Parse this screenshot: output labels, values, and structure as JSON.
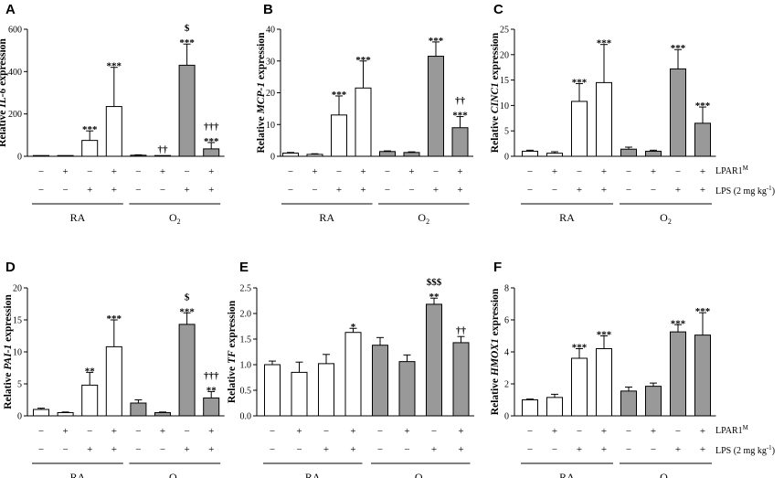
{
  "figure": {
    "group_labels": [
      "RA",
      "O2"
    ],
    "legend": [
      "LPAR1M",
      "LPS (2 mg kg-1)"
    ],
    "lpar1_signs": [
      "−",
      "+",
      "−",
      "+",
      "−",
      "+",
      "−",
      "+"
    ],
    "lps_signs": [
      "−",
      "−",
      "+",
      "+",
      "−",
      "−",
      "+",
      "+"
    ],
    "bar_colors": [
      "#ffffff",
      "#ffffff",
      "#ffffff",
      "#ffffff",
      "#999999",
      "#999999",
      "#999999",
      "#999999"
    ]
  },
  "chart_data": [
    {
      "type": "bar",
      "panel": "A",
      "title": "",
      "xlabel": "",
      "ylabel": "Relative IL-6 expression",
      "ylabel_pre": "Relative ",
      "ylabel_gene": "IL-6",
      "ylabel_post": " expression",
      "ylim": [
        0,
        600
      ],
      "yticks": [
        "0",
        "200",
        "400",
        "600"
      ],
      "categories": [
        "RA LPAR1M− LPS−",
        "RA LPAR1M+ LPS−",
        "RA LPAR1M− LPS+",
        "RA LPAR1M+ LPS+",
        "O2 LPAR1M− LPS−",
        "O2 LPAR1M+ LPS−",
        "O2 LPAR1M− LPS+",
        "O2 LPAR1M+ LPS+"
      ],
      "values": [
        2,
        0,
        75,
        235,
        5,
        0,
        430,
        35
      ],
      "errors": [
        0,
        0,
        45,
        185,
        2,
        0,
        100,
        30
      ],
      "annotations": [
        "",
        "",
        "***",
        "***",
        "",
        "††",
        "$|***",
        "†††|***"
      ]
    },
    {
      "type": "bar",
      "panel": "B",
      "title": "",
      "xlabel": "",
      "ylabel": "Relative MCP-1 expression",
      "ylabel_pre": "Relative ",
      "ylabel_gene": "MCP-1",
      "ylabel_post": " expression",
      "ylim": [
        0,
        40
      ],
      "yticks": [
        "0",
        "10",
        "20",
        "30",
        "40"
      ],
      "categories": [
        "RA LPAR1M− LPS−",
        "RA LPAR1M+ LPS−",
        "RA LPAR1M− LPS+",
        "RA LPAR1M+ LPS+",
        "O2 LPAR1M− LPS−",
        "O2 LPAR1M+ LPS−",
        "O2 LPAR1M− LPS+",
        "O2 LPAR1M+ LPS+"
      ],
      "values": [
        1,
        0.6,
        13,
        21.5,
        1.5,
        1.2,
        31.5,
        9
      ],
      "errors": [
        0.2,
        0.2,
        6,
        8.5,
        0.2,
        0.2,
        4.5,
        3.5
      ],
      "annotations": [
        "",
        "",
        "***",
        "***",
        "",
        "",
        "***",
        "††|***"
      ]
    },
    {
      "type": "bar",
      "panel": "C",
      "title": "",
      "xlabel": "",
      "ylabel": "Relative CINC1 expression",
      "ylabel_pre": "Relative ",
      "ylabel_gene": "CINC1",
      "ylabel_post": " expression",
      "ylim": [
        0,
        25
      ],
      "yticks": [
        "0",
        "5",
        "10",
        "15",
        "20",
        "25"
      ],
      "categories": [
        "RA LPAR1M− LPS−",
        "RA LPAR1M+ LPS−",
        "RA LPAR1M− LPS+",
        "RA LPAR1M+ LPS+",
        "O2 LPAR1M− LPS−",
        "O2 LPAR1M+ LPS−",
        "O2 LPAR1M− LPS+",
        "O2 LPAR1M+ LPS+"
      ],
      "values": [
        1,
        0.6,
        10.8,
        14.5,
        1.4,
        1,
        17.2,
        6.5
      ],
      "errors": [
        0.2,
        0.3,
        3.5,
        7.5,
        0.4,
        0.2,
        3.8,
        3.2
      ],
      "annotations": [
        "",
        "",
        "***",
        "***",
        "",
        "",
        "***",
        "***"
      ]
    },
    {
      "type": "bar",
      "panel": "D",
      "title": "",
      "xlabel": "",
      "ylabel": "Relative PAI-1 expression",
      "ylabel_pre": "Relative ",
      "ylabel_gene": "PAI-1",
      "ylabel_post": " expression",
      "ylim": [
        0,
        20
      ],
      "yticks": [
        "0",
        "5",
        "10",
        "15",
        "20"
      ],
      "categories": [
        "RA LPAR1M− LPS−",
        "RA LPAR1M+ LPS−",
        "RA LPAR1M− LPS+",
        "RA LPAR1M+ LPS+",
        "O2 LPAR1M− LPS−",
        "O2 LPAR1M+ LPS−",
        "O2 LPAR1M− LPS+",
        "O2 LPAR1M+ LPS+"
      ],
      "values": [
        1,
        0.5,
        4.8,
        10.8,
        2,
        0.5,
        14.3,
        2.8
      ],
      "errors": [
        0.2,
        0.1,
        2,
        4.2,
        0.5,
        0.1,
        1.8,
        1
      ],
      "annotations": [
        "",
        "",
        "**",
        "***",
        "",
        "",
        "$|***",
        "†††|**"
      ]
    },
    {
      "type": "bar",
      "panel": "E",
      "title": "",
      "xlabel": "",
      "ylabel": "Relative TF expression",
      "ylabel_pre": "Relative ",
      "ylabel_gene": "TF",
      "ylabel_post": " expression",
      "ylim": [
        0,
        2.5
      ],
      "yticks": [
        "0.0",
        "0.5",
        "1.0",
        "1.5",
        "2.0",
        "2.5"
      ],
      "categories": [
        "RA LPAR1M− LPS−",
        "RA LPAR1M+ LPS−",
        "RA LPAR1M− LPS+",
        "RA LPAR1M+ LPS+",
        "O2 LPAR1M− LPS−",
        "O2 LPAR1M+ LPS−",
        "O2 LPAR1M− LPS+",
        "O2 LPAR1M+ LPS+"
      ],
      "values": [
        1,
        0.85,
        1.02,
        1.63,
        1.38,
        1.06,
        2.18,
        1.43
      ],
      "errors": [
        0.07,
        0.2,
        0.18,
        0.08,
        0.15,
        0.13,
        0.12,
        0.12
      ],
      "annotations": [
        "",
        "",
        "",
        "*",
        "",
        "",
        "$$$|**",
        "††"
      ]
    },
    {
      "type": "bar",
      "panel": "F",
      "title": "",
      "xlabel": "",
      "ylabel": "Relative HMOX1 expression",
      "ylabel_pre": "Relative ",
      "ylabel_gene": "HMOX1",
      "ylabel_post": " expression",
      "ylim": [
        0,
        8
      ],
      "yticks": [
        "0",
        "2",
        "4",
        "6",
        "8"
      ],
      "categories": [
        "RA LPAR1M− LPS−",
        "RA LPAR1M+ LPS−",
        "RA LPAR1M− LPS+",
        "RA LPAR1M+ LPS+",
        "O2 LPAR1M− LPS−",
        "O2 LPAR1M+ LPS−",
        "O2 LPAR1M− LPS+",
        "O2 LPAR1M+ LPS+"
      ],
      "values": [
        1,
        1.15,
        3.6,
        4.2,
        1.55,
        1.85,
        5.25,
        5.05
      ],
      "errors": [
        0.05,
        0.2,
        0.6,
        0.8,
        0.25,
        0.2,
        0.45,
        1.4
      ],
      "annotations": [
        "",
        "",
        "***",
        "***",
        "",
        "",
        "***",
        "***"
      ]
    }
  ]
}
